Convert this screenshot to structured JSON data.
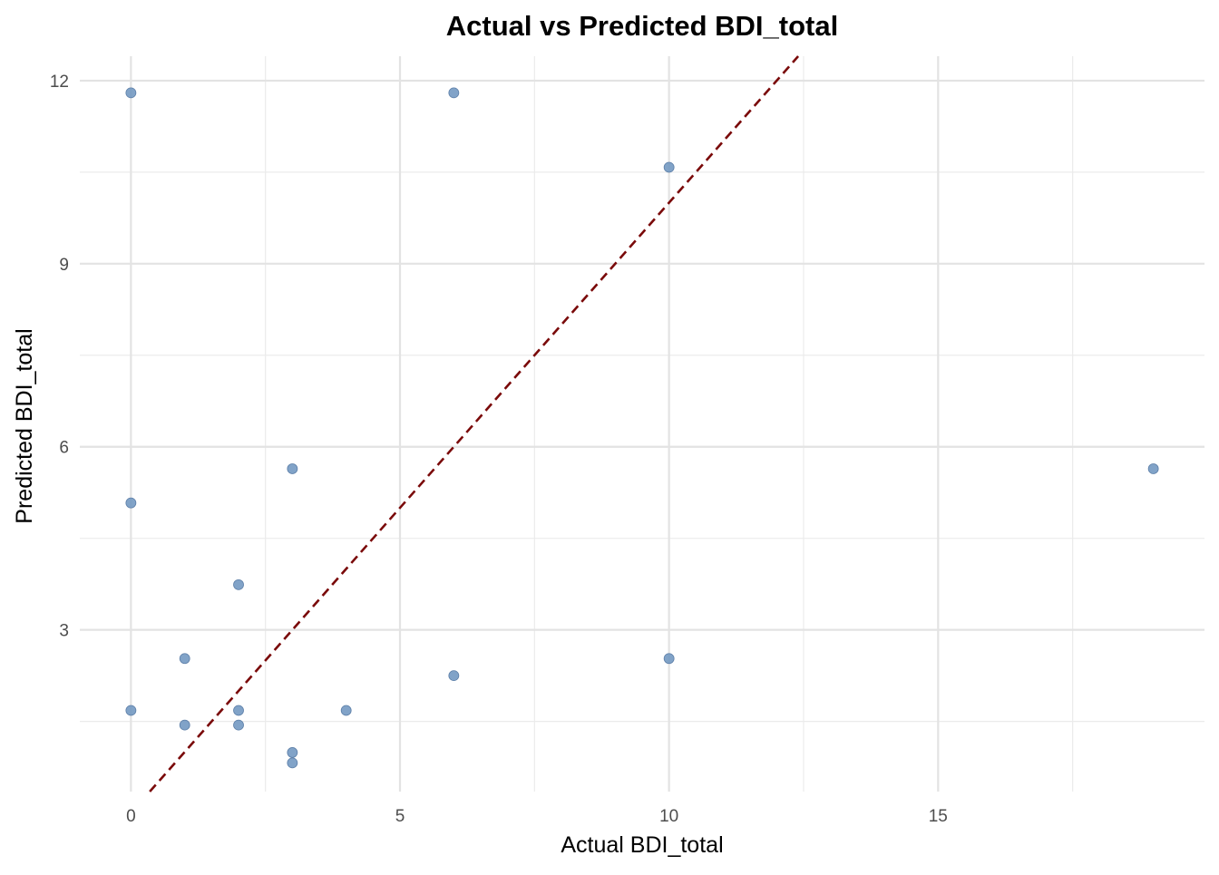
{
  "chart_data": {
    "type": "scatter",
    "title": "Actual vs Predicted BDI_total",
    "xlabel": "Actual BDI_total",
    "ylabel": "Predicted BDI_total",
    "xlim": [
      -0.95,
      19.95
    ],
    "ylim": [
      0.35,
      12.4
    ],
    "x_ticks": [
      0,
      5,
      10,
      15
    ],
    "y_ticks": [
      3,
      6,
      9,
      12
    ],
    "x_minor_ticks": [
      2.5,
      7.5,
      12.5,
      17.5
    ],
    "y_minor_ticks": [
      1.5,
      4.5,
      7.5,
      10.5
    ],
    "grid": true,
    "reference_line": {
      "type": "identity",
      "slope": 1,
      "intercept": 0,
      "style": "dashed",
      "color": "#7a0a0a"
    },
    "point_color": "#7096c0",
    "points": [
      {
        "x": 0,
        "y": 11.8
      },
      {
        "x": 6,
        "y": 11.8
      },
      {
        "x": 10,
        "y": 10.58
      },
      {
        "x": 19,
        "y": 5.64
      },
      {
        "x": 3,
        "y": 5.64
      },
      {
        "x": 0,
        "y": 5.08
      },
      {
        "x": 2,
        "y": 3.74
      },
      {
        "x": 1,
        "y": 2.53
      },
      {
        "x": 10,
        "y": 2.53
      },
      {
        "x": 6,
        "y": 2.25
      },
      {
        "x": 0,
        "y": 1.68
      },
      {
        "x": 2,
        "y": 1.68
      },
      {
        "x": 4,
        "y": 1.68
      },
      {
        "x": 1,
        "y": 1.44
      },
      {
        "x": 2,
        "y": 1.44
      },
      {
        "x": 3,
        "y": 0.99
      },
      {
        "x": 3,
        "y": 0.82
      }
    ]
  }
}
